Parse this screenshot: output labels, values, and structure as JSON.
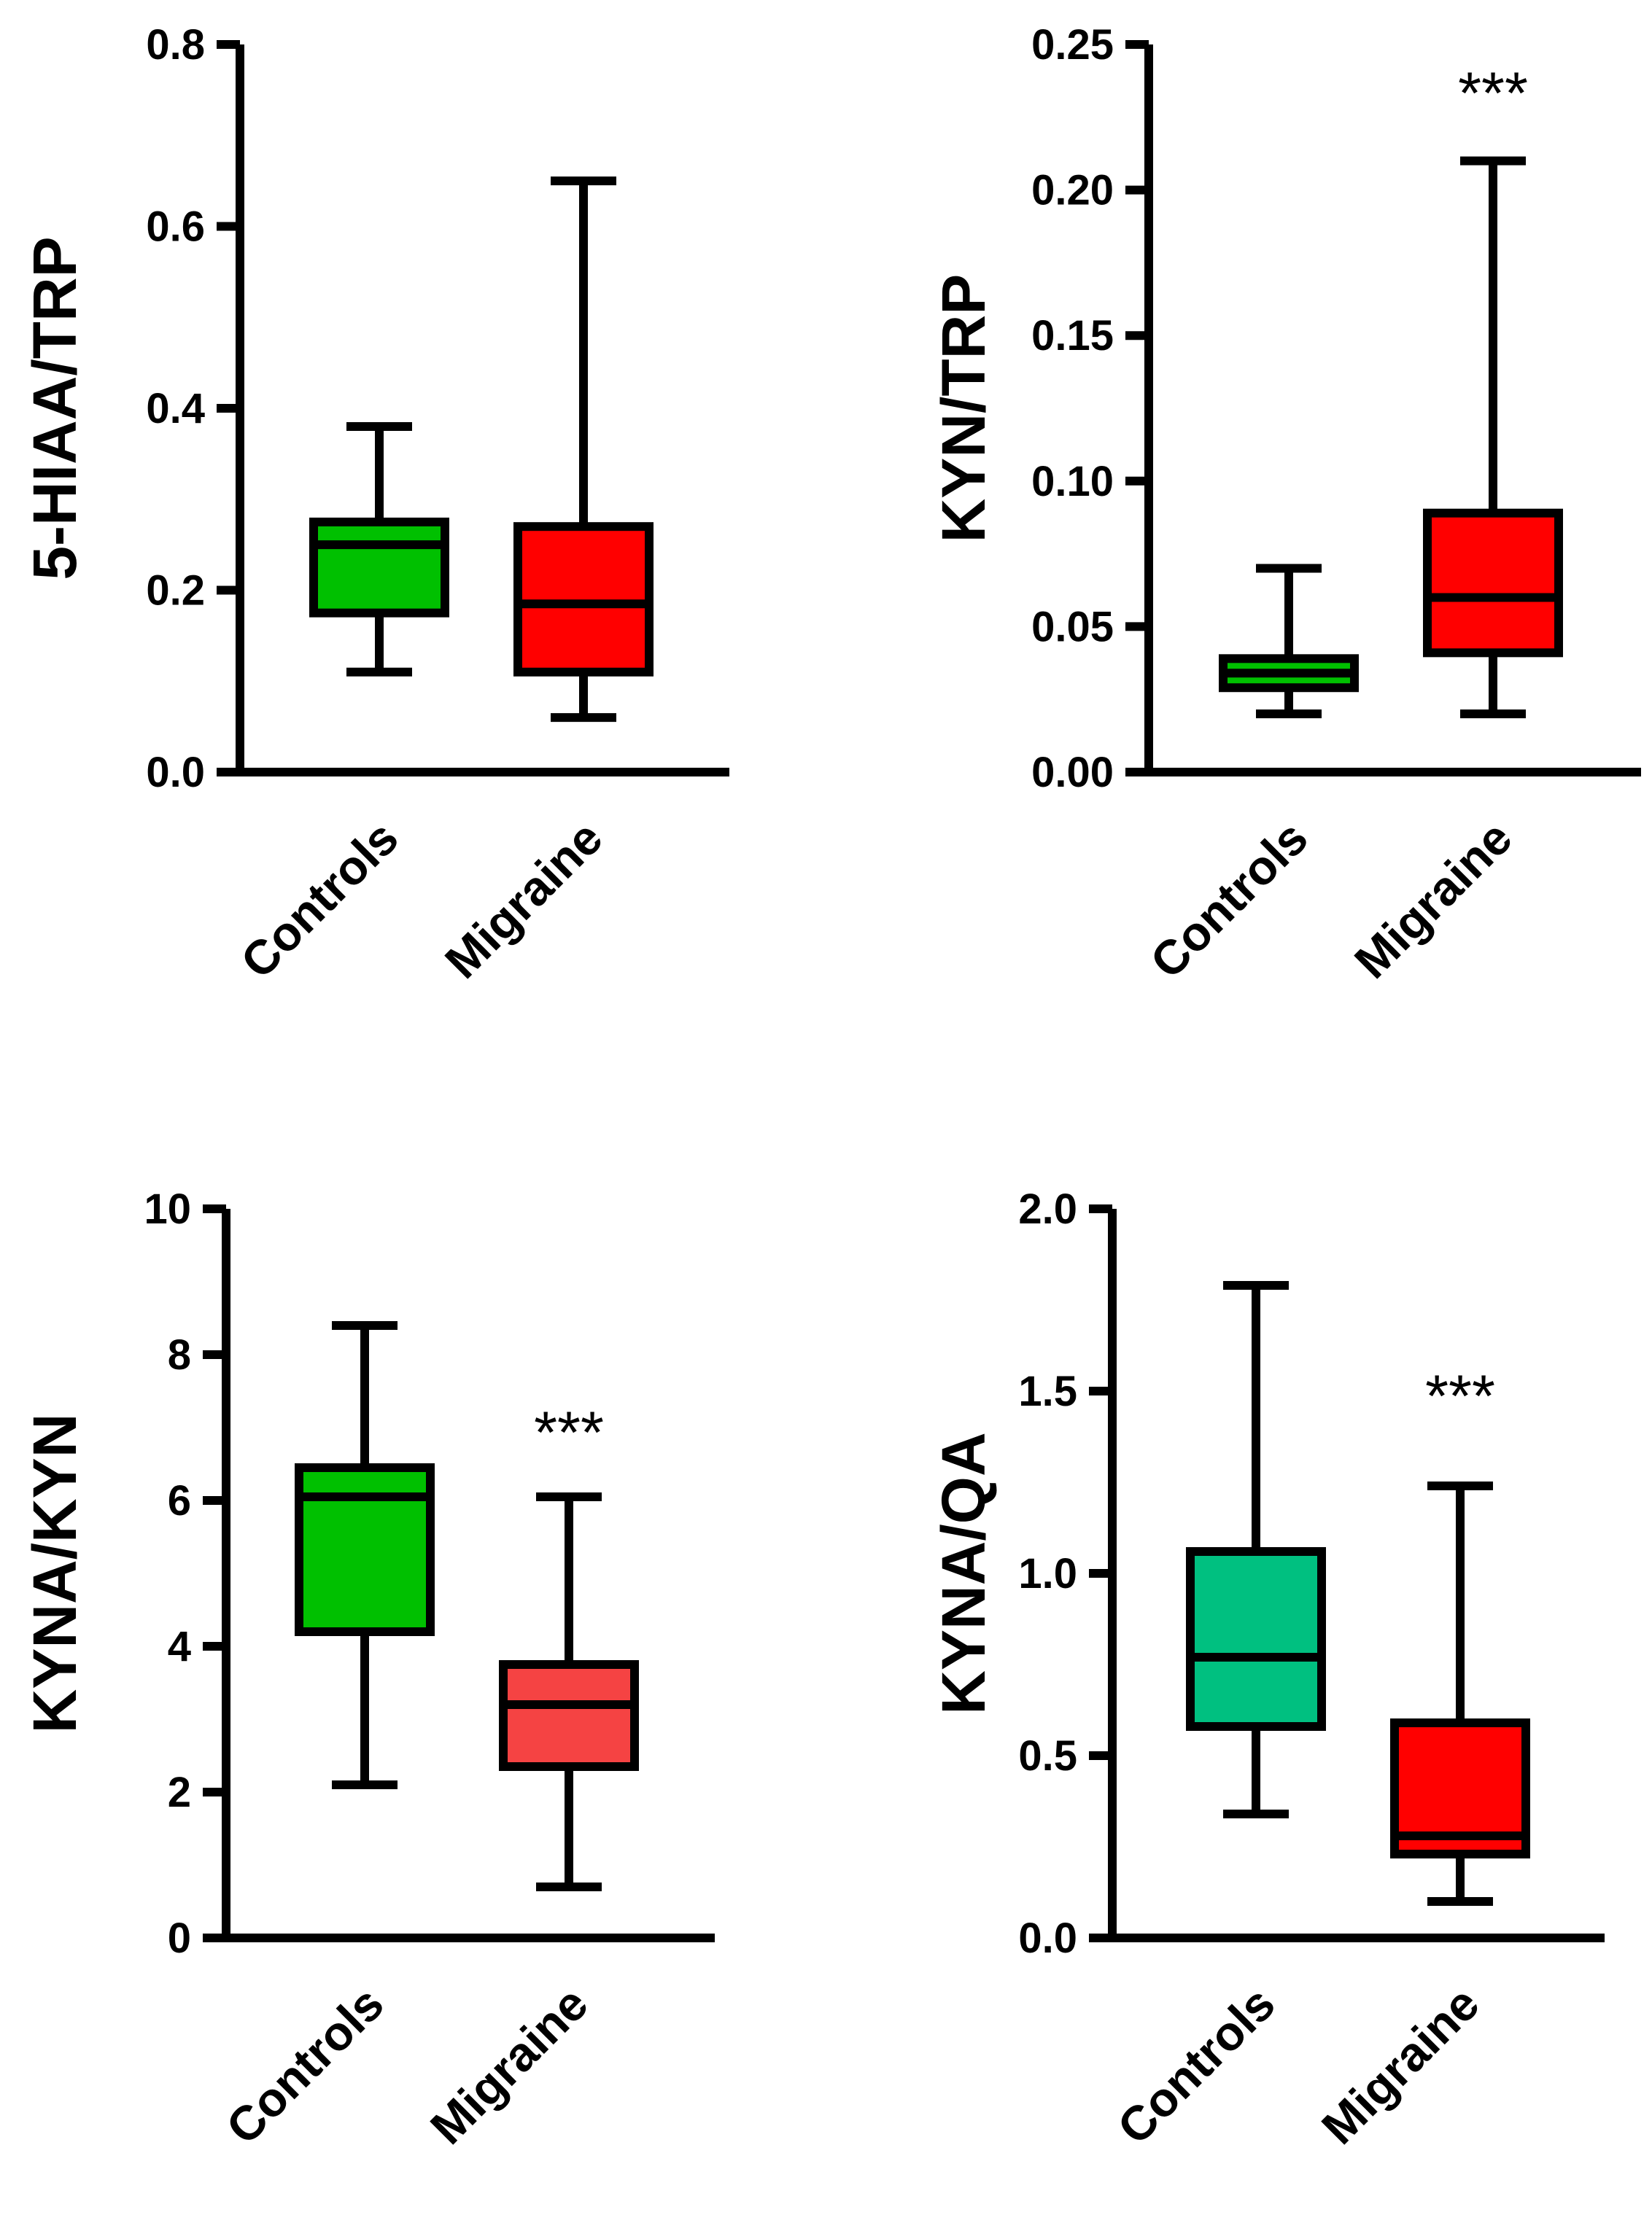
{
  "chart_data": [
    {
      "type": "box",
      "ylabel": "5-HIAA/TRP",
      "ylim": [
        0,
        0.8
      ],
      "yticks": [
        "0.0",
        "0.2",
        "0.4",
        "0.6",
        "0.8"
      ],
      "categories": [
        "Controls",
        "Migraine"
      ],
      "boxes": [
        {
          "category": "Controls",
          "color": "#00c000",
          "min": 0.11,
          "q1": 0.175,
          "median": 0.25,
          "q3": 0.275,
          "max": 0.38
        },
        {
          "category": "Migraine",
          "color": "#ff0000",
          "min": 0.06,
          "q1": 0.11,
          "median": 0.185,
          "q3": 0.27,
          "max": 0.65
        }
      ],
      "annotations": []
    },
    {
      "type": "box",
      "ylabel": "KYN/TRP",
      "ylim": [
        0,
        0.25
      ],
      "yticks": [
        "0.00",
        "0.05",
        "0.10",
        "0.15",
        "0.20",
        "0.25"
      ],
      "categories": [
        "Controls",
        "Migraine"
      ],
      "boxes": [
        {
          "category": "Controls",
          "color": "#00c000",
          "min": 0.02,
          "q1": 0.029,
          "median": 0.034,
          "q3": 0.039,
          "max": 0.07
        },
        {
          "category": "Migraine",
          "color": "#ff0000",
          "min": 0.02,
          "q1": 0.041,
          "median": 0.06,
          "q3": 0.089,
          "max": 0.21
        }
      ],
      "annotations": [
        {
          "category": "Migraine",
          "text": "***",
          "y": 0.235
        }
      ]
    },
    {
      "type": "box",
      "ylabel": "KYNA/KYN",
      "ylim": [
        0,
        10
      ],
      "yticks": [
        "0",
        "2",
        "4",
        "6",
        "8",
        "10"
      ],
      "categories": [
        "Controls",
        "Migraine"
      ],
      "boxes": [
        {
          "category": "Controls",
          "color": "#00c000",
          "min": 2.1,
          "q1": 4.2,
          "median": 6.05,
          "q3": 6.45,
          "max": 8.4
        },
        {
          "category": "Migraine",
          "color": "#f54343",
          "min": 0.7,
          "q1": 2.35,
          "median": 3.2,
          "q3": 3.75,
          "max": 6.05
        }
      ],
      "annotations": [
        {
          "category": "Migraine",
          "text": "***",
          "y": 7.0
        }
      ]
    },
    {
      "type": "box",
      "ylabel": "KYNA/QA",
      "ylim": [
        0,
        2.0
      ],
      "yticks": [
        "0.0",
        "0.5",
        "1.0",
        "1.5",
        "2.0"
      ],
      "categories": [
        "Controls",
        "Migraine"
      ],
      "boxes": [
        {
          "category": "Controls",
          "color": "#00c080",
          "min": 0.34,
          "q1": 0.58,
          "median": 0.77,
          "q3": 1.06,
          "max": 1.79
        },
        {
          "category": "Migraine",
          "color": "#ff0000",
          "min": 0.1,
          "q1": 0.23,
          "median": 0.28,
          "q3": 0.59,
          "max": 1.24
        }
      ],
      "annotations": [
        {
          "category": "Migraine",
          "text": "***",
          "y": 1.5
        }
      ]
    }
  ]
}
